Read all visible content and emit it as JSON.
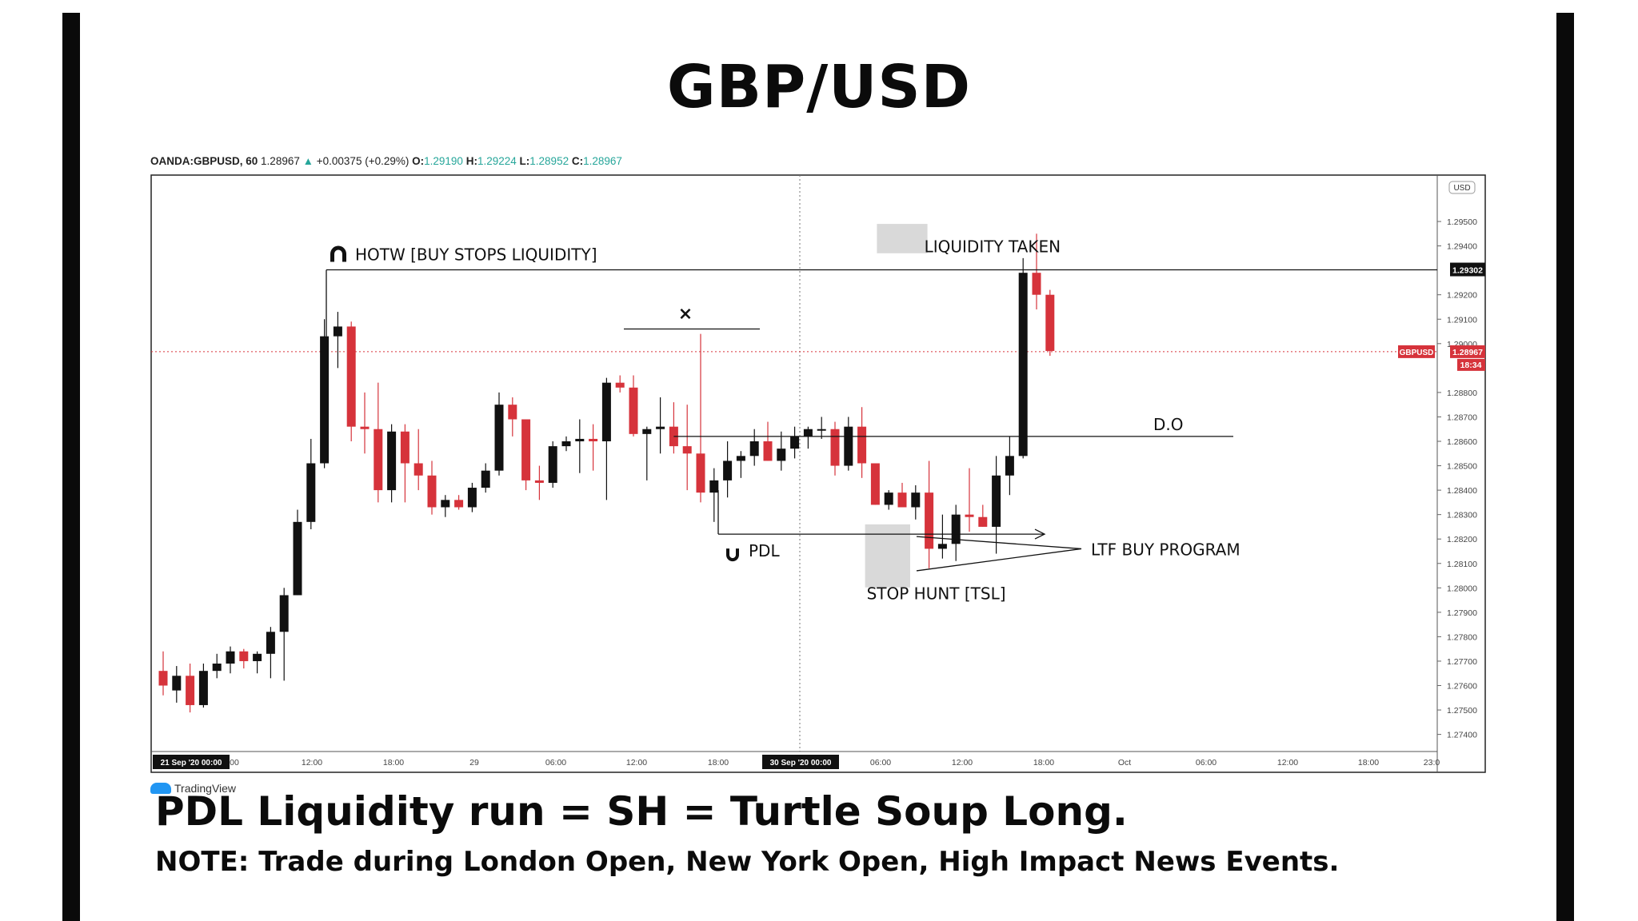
{
  "title": "GBP/USD",
  "symbol_info": {
    "symbol": "OANDA:GBPUSD, 60",
    "last": "1.28967",
    "change": "+0.00375 (+0.29%)",
    "o_label": "O:",
    "o": "1.29190",
    "h_label": "H:",
    "h": "1.29224",
    "l_label": "L:",
    "l": "1.28952",
    "c_label": "C:",
    "c": "1.28967"
  },
  "tradingview_label": "TradingView",
  "headline": "PDL Liquidity run = SH = Turtle Soup Long.",
  "note": "NOTE: Trade during London Open, New York Open, High Impact News Events.",
  "chart_data": {
    "type": "candlestick",
    "y_range": [
      1.2733,
      1.2969
    ],
    "y_ticks": [
      "1.29500",
      "1.29400",
      "1.29200",
      "1.29100",
      "1.29000",
      "1.28800",
      "1.28700",
      "1.28600",
      "1.28500",
      "1.28400",
      "1.28300",
      "1.28200",
      "1.28100",
      "1.28000",
      "1.27900",
      "1.27800",
      "1.27700",
      "1.27600",
      "1.27500",
      "1.27400"
    ],
    "currency_label": "USD",
    "x_ticks": [
      "00",
      "12:00",
      "18:00",
      "29",
      "06:00",
      "12:00",
      "18:00",
      "06:00",
      "12:00",
      "18:00",
      "Oct",
      "06:00",
      "12:00",
      "18:00",
      "23:0"
    ],
    "date_badges": [
      "21 Sep '20   00:00",
      "30 Sep '20   00:00"
    ],
    "price_labels": {
      "hotw_level": "1.29302",
      "symbol_tag": "GBPUSD",
      "last_price": "1.28967",
      "countdown": "18:34"
    },
    "levels": {
      "hotw": 1.29302,
      "last_price": 1.28967,
      "daily_open": 1.2862,
      "pdl": 1.2822
    },
    "annotations": {
      "hotw": "HOTW [BUY STOPS LIQUIDITY]",
      "liquidity_taken": "LIQUIDITY TAKEN",
      "daily_open": "D.O",
      "pdl": "PDL",
      "ltf_buy": "LTF BUY PROGRAM",
      "stop_hunt": "STOP HUNT [TSL]",
      "marker": "×"
    },
    "colors": {
      "up": "#111111",
      "down": "#d6333b",
      "last_price": "#d6333b"
    },
    "candles": [
      [
        1.2766,
        1.2774,
        1.2756,
        1.276
      ],
      [
        1.2758,
        1.2768,
        1.2753,
        1.2764
      ],
      [
        1.2764,
        1.2769,
        1.2749,
        1.2752
      ],
      [
        1.2752,
        1.2769,
        1.2751,
        1.2766
      ],
      [
        1.2766,
        1.2773,
        1.2763,
        1.2769
      ],
      [
        1.2769,
        1.2776,
        1.2765,
        1.2774
      ],
      [
        1.2774,
        1.2775,
        1.2767,
        1.277
      ],
      [
        1.277,
        1.2774,
        1.2765,
        1.2773
      ],
      [
        1.2773,
        1.2784,
        1.2763,
        1.2782
      ],
      [
        1.2782,
        1.28,
        1.2762,
        1.2797
      ],
      [
        1.2797,
        1.2832,
        1.2797,
        1.2827
      ],
      [
        1.2827,
        1.2861,
        1.2824,
        1.2851
      ],
      [
        1.2851,
        1.291,
        1.2849,
        1.2903
      ],
      [
        1.2903,
        1.2913,
        1.289,
        1.2907
      ],
      [
        1.2907,
        1.2909,
        1.286,
        1.2866
      ],
      [
        1.2866,
        1.288,
        1.2855,
        1.2865
      ],
      [
        1.2865,
        1.2884,
        1.2835,
        1.284
      ],
      [
        1.284,
        1.2867,
        1.2835,
        1.2864
      ],
      [
        1.2864,
        1.2867,
        1.2835,
        1.2851
      ],
      [
        1.2851,
        1.2865,
        1.284,
        1.2846
      ],
      [
        1.2846,
        1.2852,
        1.283,
        1.2833
      ],
      [
        1.2833,
        1.2838,
        1.2829,
        1.2836
      ],
      [
        1.2836,
        1.2838,
        1.2832,
        1.2833
      ],
      [
        1.2833,
        1.2843,
        1.2831,
        1.2841
      ],
      [
        1.2841,
        1.2851,
        1.2839,
        1.2848
      ],
      [
        1.2848,
        1.288,
        1.2846,
        1.2875
      ],
      [
        1.2875,
        1.2878,
        1.2862,
        1.2869
      ],
      [
        1.2869,
        1.2869,
        1.284,
        1.2844
      ],
      [
        1.2844,
        1.285,
        1.2836,
        1.2843
      ],
      [
        1.2843,
        1.286,
        1.2841,
        1.2858
      ],
      [
        1.2858,
        1.2862,
        1.2856,
        1.286
      ],
      [
        1.286,
        1.2869,
        1.2847,
        1.2861
      ],
      [
        1.2861,
        1.2867,
        1.2848,
        1.286
      ],
      [
        1.286,
        1.2886,
        1.2836,
        1.2884
      ],
      [
        1.2884,
        1.2887,
        1.288,
        1.2882
      ],
      [
        1.2882,
        1.2887,
        1.2862,
        1.2863
      ],
      [
        1.2863,
        1.2866,
        1.2844,
        1.2865
      ],
      [
        1.2865,
        1.2878,
        1.2855,
        1.2866
      ],
      [
        1.2866,
        1.2876,
        1.2855,
        1.2858
      ],
      [
        1.2858,
        1.2875,
        1.284,
        1.2855
      ],
      [
        1.2855,
        1.2904,
        1.2835,
        1.2839
      ],
      [
        1.2839,
        1.2849,
        1.2827,
        1.2844
      ],
      [
        1.2844,
        1.286,
        1.2837,
        1.2852
      ],
      [
        1.2852,
        1.2856,
        1.2845,
        1.2854
      ],
      [
        1.2854,
        1.2865,
        1.285,
        1.286
      ],
      [
        1.286,
        1.2868,
        1.2852,
        1.2852
      ],
      [
        1.2852,
        1.2864,
        1.2848,
        1.2857
      ],
      [
        1.2857,
        1.2866,
        1.2853,
        1.2862
      ],
      [
        1.2862,
        1.2866,
        1.2857,
        1.2865
      ],
      [
        1.2865,
        1.287,
        1.2861,
        1.2865
      ],
      [
        1.2865,
        1.2868,
        1.2846,
        1.285
      ],
      [
        1.285,
        1.287,
        1.2848,
        1.2866
      ],
      [
        1.2866,
        1.2874,
        1.2845,
        1.2851
      ],
      [
        1.2851,
        1.2851,
        1.2834,
        1.2834
      ],
      [
        1.2834,
        1.284,
        1.2832,
        1.2839
      ],
      [
        1.2839,
        1.2843,
        1.2833,
        1.2833
      ],
      [
        1.2833,
        1.2842,
        1.2828,
        1.2839
      ],
      [
        1.2839,
        1.2852,
        1.2808,
        1.2816
      ],
      [
        1.2816,
        1.283,
        1.2812,
        1.2818
      ],
      [
        1.2818,
        1.2834,
        1.2811,
        1.283
      ],
      [
        1.283,
        1.2849,
        1.2823,
        1.2829
      ],
      [
        1.2829,
        1.2834,
        1.2825,
        1.2825
      ],
      [
        1.2825,
        1.2854,
        1.2814,
        1.2846
      ],
      [
        1.2846,
        1.2862,
        1.2838,
        1.2854
      ],
      [
        1.2854,
        1.2935,
        1.2853,
        1.2929
      ],
      [
        1.2929,
        1.2945,
        1.2914,
        1.292
      ],
      [
        1.292,
        1.2922,
        1.2895,
        1.2897
      ]
    ]
  }
}
